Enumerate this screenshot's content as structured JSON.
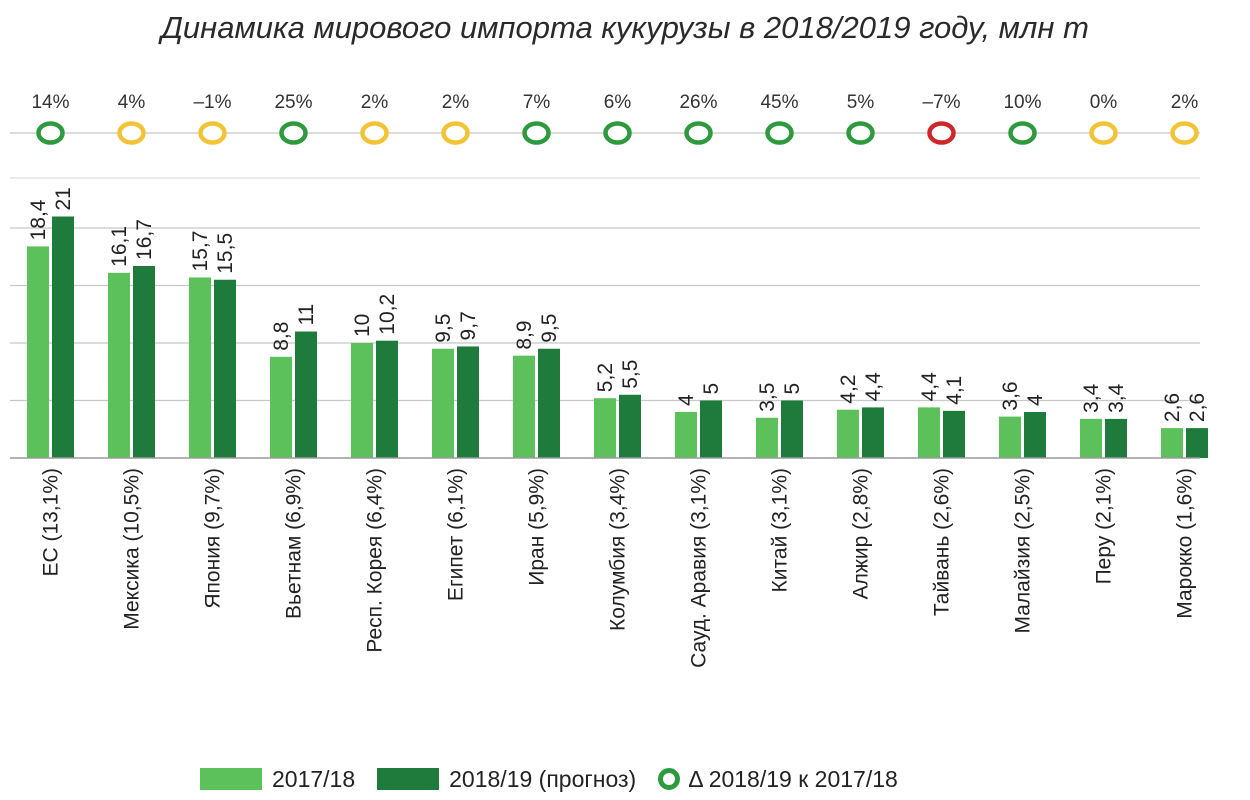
{
  "chart_data": {
    "type": "bar",
    "title": "Динамика мирового импорта кукурузы в 2018/2019 году, млн т",
    "xlabel": "",
    "ylabel": "",
    "ylim": [
      0,
      23
    ],
    "categories": [
      "ЕС (13,1%)",
      "Мексика (10,5%)",
      "Япония (9,7%)",
      "Вьетнам (6,9%)",
      "Респ. Корея (6,4%)",
      "Египет (6,1%)",
      "Иран (5,9%)",
      "Колумбия (3,4%)",
      "Сауд. Аравия (3,1%)",
      "Китай (3,1%)",
      "Алжир (2,8%)",
      "Тайвань (2,6%)",
      "Малайзия (2,5%)",
      "Перу (2,1%)",
      "Марокко (1,6%)"
    ],
    "series": [
      {
        "name": "2017/18",
        "color": "#5cc15a",
        "values": [
          18.4,
          16.1,
          15.7,
          8.8,
          10,
          9.5,
          8.9,
          5.2,
          4,
          3.5,
          4.2,
          4.4,
          3.6,
          3.4,
          2.6
        ],
        "labels": [
          "18,4",
          "16,1",
          "15,7",
          "8,8",
          "10",
          "9,5",
          "8,9",
          "5,2",
          "4",
          "3,5",
          "4,2",
          "4,4",
          "3,6",
          "3,4",
          "2,6"
        ]
      },
      {
        "name": "2018/19 (прогноз)",
        "color": "#1f7b3c",
        "values": [
          21,
          16.7,
          15.5,
          11,
          10.2,
          9.7,
          9.5,
          5.5,
          5,
          5,
          4.4,
          4.1,
          4,
          3.4,
          2.6
        ],
        "labels": [
          "21",
          "16,7",
          "15,5",
          "11",
          "10,2",
          "9,7",
          "9,5",
          "5,5",
          "5",
          "5",
          "4,4",
          "4,1",
          "4",
          "3,4",
          "2,6"
        ]
      }
    ],
    "change": {
      "name": "Δ 2018/19 к 2017/18",
      "labels": [
        "14%",
        "4%",
        "–1%",
        "25%",
        "2%",
        "2%",
        "7%",
        "6%",
        "26%",
        "45%",
        "5%",
        "–7%",
        "10%",
        "0%",
        "2%"
      ],
      "status": [
        "green",
        "yellow",
        "yellow",
        "green",
        "yellow",
        "yellow",
        "green",
        "green",
        "green",
        "green",
        "green",
        "red",
        "green",
        "yellow",
        "yellow"
      ]
    },
    "status_colors": {
      "green": "#2e9a3e",
      "yellow": "#f2c335",
      "red": "#d0262b"
    },
    "grid": true,
    "legend_position": "bottom"
  }
}
